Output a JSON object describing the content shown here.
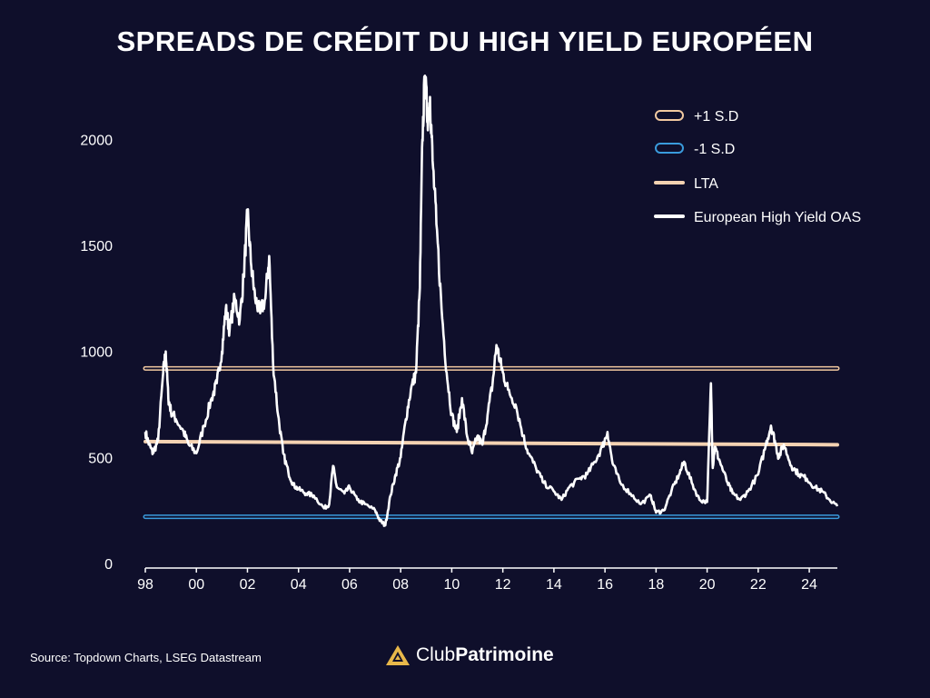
{
  "title": "SPREADS DE CRÉDIT DU HIGH YIELD EUROPÉEN",
  "source": "Source: Topdown Charts, LSEG Datastream",
  "brand": {
    "part1": "Club",
    "part2": "Patrimoine"
  },
  "colors": {
    "background": "#0f0f2b",
    "plus_sd": "#f2c9a0",
    "minus_sd": "#3a9bdc",
    "lta": "#f4d2b2",
    "oas": "#ffffff",
    "logo": "#e8b84a"
  },
  "chart_data": {
    "type": "line",
    "title": "SPREADS DE CRÉDIT DU HIGH YIELD EUROPÉEN",
    "xlabel": "",
    "ylabel": "",
    "xlim": [
      1998.0,
      2025.1
    ],
    "ylim": [
      0,
      2100
    ],
    "x_ticks": [
      "98",
      "00",
      "02",
      "04",
      "06",
      "08",
      "10",
      "12",
      "14",
      "16",
      "18",
      "20",
      "22",
      "24"
    ],
    "x_tick_values": [
      1998,
      2000,
      2002,
      2004,
      2006,
      2008,
      2010,
      2012,
      2014,
      2016,
      2018,
      2020,
      2022,
      2024
    ],
    "y_ticks": [
      0,
      500,
      1000,
      1500,
      2000
    ],
    "legend_position": "top-right",
    "grid": false,
    "legend": [
      {
        "label": "+1 S.D",
        "style": "outlined",
        "color": "#f2c9a0"
      },
      {
        "label": "-1 S.D",
        "style": "outlined",
        "color": "#3a9bdc"
      },
      {
        "label": "LTA",
        "style": "solid",
        "color": "#f4d2b2"
      },
      {
        "label": "European High Yield OAS",
        "style": "solid",
        "color": "#ffffff"
      }
    ],
    "series": [
      {
        "name": "+1 S.D",
        "x": [
          1998.0,
          2025.1
        ],
        "values": [
          920,
          920
        ]
      },
      {
        "name": "-1 S.D",
        "x": [
          1998.0,
          2025.1
        ],
        "values": [
          220,
          220
        ]
      },
      {
        "name": "LTA",
        "x": [
          1998.0,
          2025.1
        ],
        "values": [
          575,
          560
        ]
      },
      {
        "name": "European High Yield OAS",
        "x": [
          1998.0,
          1998.15,
          1998.3,
          1998.5,
          1998.7,
          1998.8,
          1998.9,
          1999.0,
          1999.2,
          1999.5,
          1999.7,
          2000.0,
          2000.3,
          2000.6,
          2000.8,
          2001.0,
          2001.15,
          2001.3,
          2001.5,
          2001.7,
          2001.85,
          2002.0,
          2002.15,
          2002.3,
          2002.5,
          2002.7,
          2002.85,
          2003.0,
          2003.2,
          2003.4,
          2003.6,
          2003.8,
          2004.0,
          2004.3,
          2004.6,
          2005.0,
          2005.2,
          2005.35,
          2005.5,
          2005.8,
          2006.0,
          2006.3,
          2006.6,
          2007.0,
          2007.2,
          2007.4,
          2007.6,
          2007.8,
          2008.0,
          2008.2,
          2008.4,
          2008.6,
          2008.75,
          2008.85,
          2008.95,
          2009.05,
          2009.15,
          2009.25,
          2009.4,
          2009.6,
          2009.8,
          2010.0,
          2010.2,
          2010.4,
          2010.6,
          2010.8,
          2011.0,
          2011.2,
          2011.4,
          2011.6,
          2011.75,
          2011.9,
          2012.0,
          2012.2,
          2012.5,
          2012.8,
          2013.0,
          2013.3,
          2013.6,
          2014.0,
          2014.3,
          2014.6,
          2015.0,
          2015.3,
          2015.6,
          2015.9,
          2016.1,
          2016.3,
          2016.6,
          2017.0,
          2017.4,
          2017.8,
          2018.0,
          2018.3,
          2018.6,
          2018.9,
          2019.1,
          2019.4,
          2019.7,
          2020.0,
          2020.15,
          2020.22,
          2020.3,
          2020.5,
          2020.8,
          2021.0,
          2021.3,
          2021.6,
          2022.0,
          2022.3,
          2022.5,
          2022.65,
          2022.8,
          2023.0,
          2023.3,
          2023.6,
          2023.9,
          2024.2,
          2024.5,
          2024.8,
          2025.1
        ],
        "values": [
          620,
          560,
          520,
          580,
          900,
          1000,
          780,
          720,
          680,
          620,
          560,
          520,
          650,
          780,
          850,
          1000,
          1200,
          1100,
          1250,
          1150,
          1350,
          1650,
          1400,
          1250,
          1180,
          1250,
          1450,
          950,
          700,
          520,
          430,
          370,
          350,
          330,
          320,
          260,
          280,
          460,
          360,
          330,
          360,
          300,
          280,
          250,
          200,
          180,
          320,
          420,
          500,
          680,
          820,
          900,
          1300,
          2000,
          2300,
          2100,
          2200,
          1900,
          1600,
          1200,
          900,
          700,
          620,
          780,
          600,
          520,
          600,
          560,
          700,
          850,
          1030,
          950,
          900,
          820,
          750,
          600,
          520,
          450,
          380,
          340,
          300,
          360,
          400,
          420,
          480,
          550,
          620,
          470,
          380,
          330,
          280,
          320,
          240,
          250,
          340,
          420,
          480,
          380,
          300,
          290,
          850,
          450,
          550,
          480,
          380,
          330,
          300,
          340,
          420,
          560,
          650,
          580,
          500,
          560,
          460,
          420,
          400,
          360,
          340,
          300,
          270
        ]
      }
    ]
  }
}
